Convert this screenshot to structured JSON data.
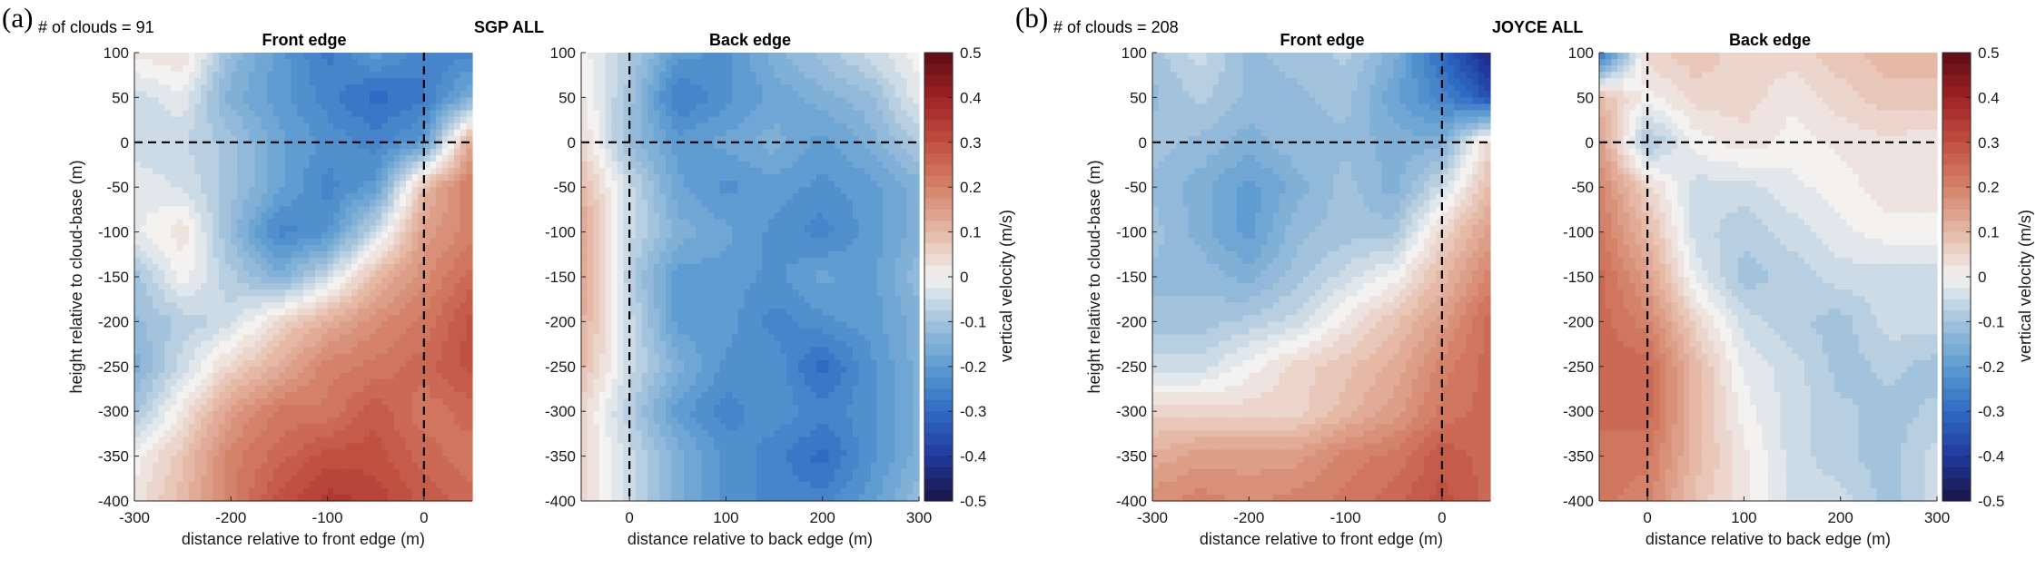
{
  "figure": {
    "panels": [
      {
        "letter": "(a)",
        "clouds_label": "# of clouds = 91",
        "site_label": "SGP ALL",
        "front_title": "Front edge",
        "back_title": "Back edge",
        "colorbar_label": "vertical velocity (m/s)"
      },
      {
        "letter": "(b)",
        "clouds_label": "# of clouds = 208",
        "site_label": "JOYCE ALL",
        "front_title": "Front edge",
        "back_title": "Back edge",
        "colorbar_label": "vertical velocity (m/s)"
      }
    ],
    "colormap": {
      "stops": [
        [
          -0.5,
          "#1a1446"
        ],
        [
          -0.4,
          "#21399e"
        ],
        [
          -0.3,
          "#2f6bc2"
        ],
        [
          -0.2,
          "#5e9cd1"
        ],
        [
          -0.1,
          "#a3c3dc"
        ],
        [
          -0.03,
          "#dde5ea"
        ],
        [
          0.0,
          "#f4f2f0"
        ],
        [
          0.03,
          "#ede0db"
        ],
        [
          0.1,
          "#e5b9a6"
        ],
        [
          0.2,
          "#d5826a"
        ],
        [
          0.3,
          "#c0503f"
        ],
        [
          0.4,
          "#9e2226"
        ],
        [
          0.5,
          "#5a0d14"
        ]
      ]
    }
  },
  "chart_data": [
    {
      "type": "heatmap",
      "panel": "(a)",
      "title": "Front edge",
      "xlabel": "distance relative to front edge (m)",
      "ylabel": "height relative to cloud-base (m)",
      "xlim": [
        -300,
        50
      ],
      "ylim": [
        -400,
        100
      ],
      "xticks": [
        -300,
        -200,
        -100,
        0
      ],
      "yticks": [
        100,
        50,
        0,
        -50,
        -100,
        -150,
        -200,
        -250,
        -300,
        -350,
        -400
      ],
      "reference_lines": {
        "x": 0,
        "y": 0
      },
      "x": [
        -300,
        -250,
        -200,
        -150,
        -100,
        -50,
        0,
        50
      ],
      "y": [
        100,
        50,
        0,
        -50,
        -100,
        -150,
        -200,
        -250,
        -300,
        -350,
        -400
      ],
      "z": [
        [
          0.02,
          0.04,
          -0.12,
          -0.2,
          -0.27,
          -0.2,
          -0.25,
          -0.25
        ],
        [
          -0.05,
          -0.02,
          -0.15,
          -0.2,
          -0.25,
          -0.3,
          -0.27,
          -0.15
        ],
        [
          -0.05,
          -0.06,
          -0.1,
          -0.18,
          -0.22,
          -0.25,
          -0.2,
          0.15
        ],
        [
          -0.02,
          -0.04,
          -0.1,
          -0.18,
          -0.25,
          -0.2,
          0.1,
          0.22
        ],
        [
          -0.02,
          0.03,
          -0.12,
          -0.25,
          -0.22,
          -0.05,
          0.15,
          0.2
        ],
        [
          -0.1,
          0.0,
          -0.08,
          -0.15,
          -0.05,
          0.1,
          0.18,
          0.25
        ],
        [
          -0.12,
          -0.08,
          -0.05,
          0.05,
          0.12,
          0.18,
          0.22,
          0.3
        ],
        [
          -0.15,
          -0.05,
          0.05,
          0.12,
          0.2,
          0.22,
          0.25,
          0.3
        ],
        [
          -0.1,
          0.02,
          0.15,
          0.22,
          0.22,
          0.28,
          0.22,
          0.25
        ],
        [
          0.0,
          0.08,
          0.2,
          0.25,
          0.3,
          0.3,
          0.25,
          0.22
        ],
        [
          0.02,
          0.1,
          0.2,
          0.3,
          0.35,
          0.33,
          0.28,
          0.25
        ]
      ]
    },
    {
      "type": "heatmap",
      "panel": "(a)",
      "title": "Back edge",
      "xlabel": "distance relative to back edge (m)",
      "ylabel": "",
      "xlim": [
        -50,
        300
      ],
      "ylim": [
        -400,
        100
      ],
      "xticks": [
        0,
        100,
        200,
        300
      ],
      "yticks": [
        100,
        50,
        0,
        -50,
        -100,
        -150,
        -200,
        -250,
        -300,
        -350,
        -400
      ],
      "reference_lines": {
        "x": 0,
        "y": 0
      },
      "x": [
        -50,
        0,
        50,
        100,
        150,
        200,
        250,
        300
      ],
      "y": [
        100,
        50,
        0,
        -50,
        -100,
        -150,
        -200,
        -250,
        -300,
        -350,
        -400
      ],
      "z": [
        [
          0.0,
          -0.08,
          -0.2,
          -0.22,
          -0.15,
          -0.1,
          -0.05,
          0.0
        ],
        [
          0.02,
          -0.1,
          -0.27,
          -0.22,
          -0.18,
          -0.15,
          -0.12,
          -0.02
        ],
        [
          0.05,
          -0.12,
          -0.2,
          -0.18,
          -0.15,
          -0.2,
          -0.15,
          -0.08
        ],
        [
          0.1,
          -0.05,
          -0.18,
          -0.22,
          -0.2,
          -0.22,
          -0.2,
          -0.15
        ],
        [
          0.15,
          -0.05,
          -0.15,
          -0.18,
          -0.22,
          -0.25,
          -0.2,
          -0.15
        ],
        [
          0.15,
          -0.08,
          -0.2,
          -0.2,
          -0.22,
          -0.18,
          -0.2,
          -0.12
        ],
        [
          0.12,
          -0.05,
          -0.2,
          -0.2,
          -0.25,
          -0.22,
          -0.2,
          -0.15
        ],
        [
          0.1,
          -0.05,
          -0.15,
          -0.22,
          -0.22,
          -0.3,
          -0.22,
          -0.15
        ],
        [
          0.05,
          -0.08,
          -0.2,
          -0.25,
          -0.22,
          -0.25,
          -0.22,
          -0.15
        ],
        [
          0.05,
          -0.05,
          -0.15,
          -0.22,
          -0.25,
          -0.3,
          -0.22,
          -0.15
        ],
        [
          0.05,
          -0.05,
          -0.15,
          -0.22,
          -0.25,
          -0.25,
          -0.2,
          -0.12
        ]
      ]
    },
    {
      "type": "heatmap",
      "panel": "(b)",
      "title": "Front edge",
      "xlabel": "distance relative to front edge (m)",
      "ylabel": "height relative to cloud-base (m)",
      "xlim": [
        -300,
        50
      ],
      "ylim": [
        -400,
        100
      ],
      "xticks": [
        -300,
        -200,
        -100,
        0
      ],
      "yticks": [
        100,
        50,
        0,
        -50,
        -100,
        -150,
        -200,
        -250,
        -300,
        -350,
        -400
      ],
      "reference_lines": {
        "x": 0,
        "y": 0
      },
      "x": [
        -300,
        -250,
        -200,
        -150,
        -100,
        -50,
        0,
        50
      ],
      "y": [
        100,
        50,
        0,
        -50,
        -100,
        -150,
        -200,
        -250,
        -300,
        -350,
        -400
      ],
      "z": [
        [
          -0.1,
          -0.05,
          -0.12,
          -0.1,
          -0.08,
          -0.15,
          -0.3,
          -0.45
        ],
        [
          -0.12,
          -0.08,
          -0.12,
          -0.12,
          -0.1,
          -0.18,
          -0.25,
          -0.35
        ],
        [
          -0.1,
          -0.12,
          -0.15,
          -0.12,
          -0.12,
          -0.15,
          -0.15,
          0.05
        ],
        [
          -0.12,
          -0.15,
          -0.2,
          -0.15,
          -0.1,
          -0.15,
          -0.05,
          0.1
        ],
        [
          -0.1,
          -0.15,
          -0.2,
          -0.12,
          -0.1,
          -0.1,
          0.05,
          0.15
        ],
        [
          -0.12,
          -0.12,
          -0.15,
          -0.1,
          -0.05,
          0.0,
          0.1,
          0.2
        ],
        [
          -0.1,
          -0.1,
          -0.08,
          -0.05,
          0.02,
          0.08,
          0.15,
          0.25
        ],
        [
          -0.05,
          -0.05,
          0.0,
          0.05,
          0.08,
          0.12,
          0.2,
          0.25
        ],
        [
          0.05,
          0.05,
          0.05,
          0.05,
          0.1,
          0.15,
          0.22,
          0.25
        ],
        [
          0.12,
          0.15,
          0.15,
          0.15,
          0.2,
          0.22,
          0.28,
          0.25
        ],
        [
          0.18,
          0.2,
          0.18,
          0.2,
          0.22,
          0.25,
          0.3,
          0.25
        ]
      ]
    },
    {
      "type": "heatmap",
      "panel": "(b)",
      "title": "Back edge",
      "xlabel": "distance relative to back edge (m)",
      "ylabel": "",
      "xlim": [
        -50,
        300
      ],
      "ylim": [
        -400,
        100
      ],
      "xticks": [
        0,
        100,
        200,
        300
      ],
      "yticks": [
        100,
        50,
        0,
        -50,
        -100,
        -150,
        -200,
        -250,
        -300,
        -350,
        -400
      ],
      "reference_lines": {
        "x": 0,
        "y": 0
      },
      "x": [
        -50,
        0,
        50,
        100,
        150,
        200,
        250,
        300
      ],
      "y": [
        100,
        50,
        0,
        -50,
        -100,
        -150,
        -200,
        -250,
        -300,
        -350,
        -400
      ],
      "z": [
        [
          -0.3,
          0.05,
          0.08,
          0.05,
          0.05,
          0.08,
          0.1,
          0.1
        ],
        [
          0.1,
          0.0,
          0.05,
          0.05,
          0.02,
          0.05,
          0.08,
          0.08
        ],
        [
          0.15,
          -0.1,
          0.0,
          0.03,
          0.0,
          0.02,
          0.03,
          0.02
        ],
        [
          0.2,
          0.05,
          -0.05,
          -0.05,
          -0.02,
          0.0,
          0.03,
          0.03
        ],
        [
          0.22,
          0.1,
          -0.05,
          -0.08,
          -0.05,
          -0.02,
          0.0,
          0.0
        ],
        [
          0.25,
          0.15,
          -0.02,
          -0.1,
          -0.08,
          -0.05,
          -0.05,
          -0.05
        ],
        [
          0.25,
          0.2,
          0.05,
          -0.05,
          -0.08,
          -0.1,
          -0.05,
          -0.05
        ],
        [
          0.25,
          0.25,
          0.1,
          -0.02,
          -0.05,
          -0.1,
          -0.08,
          -0.1
        ],
        [
          0.25,
          0.25,
          0.1,
          0.0,
          -0.05,
          -0.08,
          -0.1,
          -0.08
        ],
        [
          0.22,
          0.22,
          0.1,
          0.02,
          -0.05,
          -0.08,
          -0.1,
          -0.05
        ],
        [
          0.22,
          0.2,
          0.08,
          0.02,
          -0.05,
          -0.05,
          -0.1,
          -0.05
        ]
      ]
    }
  ]
}
